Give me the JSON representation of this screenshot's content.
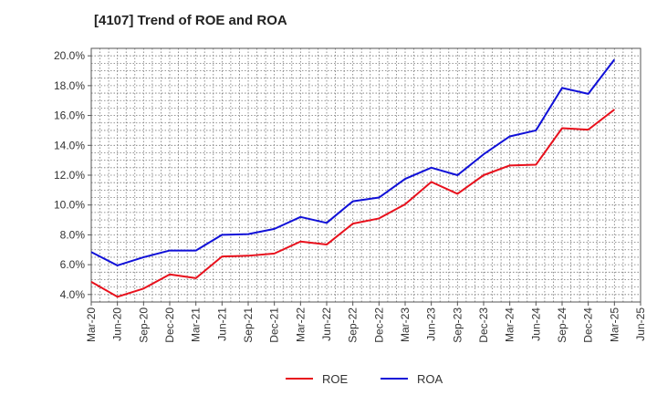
{
  "chart_data": {
    "type": "line",
    "title": "[4107]  Trend of ROE and ROA",
    "xlabel": "",
    "ylabel": "",
    "x": [
      "Mar-20",
      "Jun-20",
      "Sep-20",
      "Dec-20",
      "Mar-21",
      "Jun-21",
      "Sep-21",
      "Dec-21",
      "Mar-22",
      "Jun-22",
      "Sep-22",
      "Dec-22",
      "Mar-23",
      "Jun-23",
      "Sep-23",
      "Dec-23",
      "Mar-24",
      "Jun-24",
      "Sep-24",
      "Dec-24",
      "Mar-25"
    ],
    "x_ticks": [
      "Mar-20",
      "Jun-20",
      "Sep-20",
      "Dec-20",
      "Mar-21",
      "Jun-21",
      "Sep-21",
      "Dec-21",
      "Mar-22",
      "Jun-22",
      "Sep-22",
      "Dec-22",
      "Mar-23",
      "Jun-23",
      "Sep-23",
      "Dec-23",
      "Mar-24",
      "Jun-24",
      "Sep-24",
      "Dec-24",
      "Mar-25",
      "Jun-25"
    ],
    "y_ticks": [
      4.0,
      6.0,
      8.0,
      10.0,
      12.0,
      14.0,
      16.0,
      18.0,
      20.0
    ],
    "y_tick_labels": [
      "4.0%",
      "6.0%",
      "8.0%",
      "10.0%",
      "12.0%",
      "14.0%",
      "16.0%",
      "18.0%",
      "20.0%"
    ],
    "ylim": [
      3.5,
      20.5
    ],
    "grid": true,
    "legend_position": "bottom-center",
    "series": [
      {
        "name": "ROE",
        "color": "#e8101c",
        "values": [
          4.85,
          3.85,
          4.4,
          5.35,
          5.1,
          6.55,
          6.6,
          6.75,
          7.55,
          7.35,
          8.75,
          9.1,
          10.05,
          11.55,
          10.75,
          12.0,
          12.65,
          12.7,
          15.15,
          15.05,
          16.4
        ]
      },
      {
        "name": "ROA",
        "color": "#1010d8",
        "values": [
          6.85,
          5.95,
          6.5,
          6.95,
          6.95,
          8.0,
          8.05,
          8.4,
          9.2,
          8.8,
          10.25,
          10.5,
          11.75,
          12.5,
          12.0,
          13.4,
          14.6,
          15.0,
          17.85,
          17.45,
          19.75
        ]
      }
    ]
  }
}
